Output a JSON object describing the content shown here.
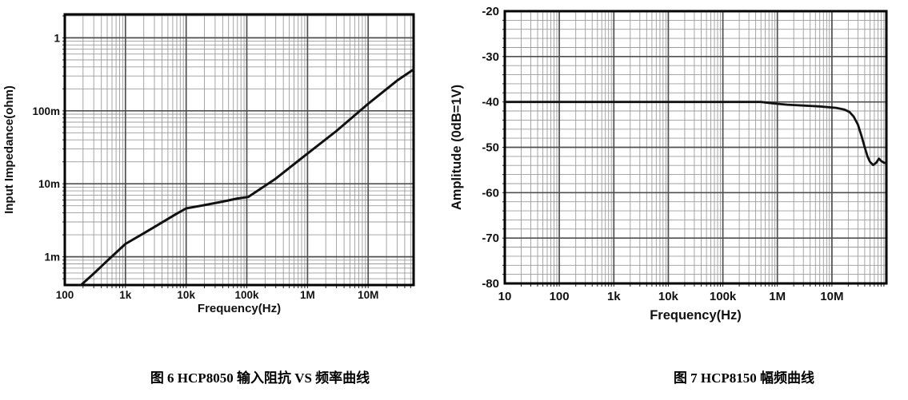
{
  "page": {
    "background": "#ffffff"
  },
  "captions": {
    "fig6": "图 6 HCP8050 输入阻抗 VS 频率曲线",
    "fig7": "图 7 HCP8150 幅频曲线"
  },
  "colors": {
    "curve": "#111111",
    "grid_minor": "#9c9c9c",
    "grid_major": "#4f4f4f",
    "border": "#000000"
  },
  "chart_data": [
    {
      "id": "impedance",
      "type": "line",
      "xlabel": "Frequency(Hz)",
      "ylabel": "Input Impedance(ohm)",
      "xscale": "log",
      "yscale": "log",
      "xlim": [
        100,
        56000000
      ],
      "ylim": [
        0.00041,
        2.1
      ],
      "grid": {
        "x_minor": "log",
        "y_minor": "log"
      },
      "xticks": [
        {
          "v": 100,
          "label": "100"
        },
        {
          "v": 1000,
          "label": "1k"
        },
        {
          "v": 10000,
          "label": "10k"
        },
        {
          "v": 100000,
          "label": "100k"
        },
        {
          "v": 1000000,
          "label": "1M"
        },
        {
          "v": 10000000,
          "label": "10M"
        }
      ],
      "yticks": [
        {
          "v": 1,
          "label": "1"
        },
        {
          "v": 0.1,
          "label": "100m"
        },
        {
          "v": 0.01,
          "label": "10m"
        },
        {
          "v": 0.001,
          "label": "1m"
        }
      ],
      "series": [
        {
          "name": "input_impedance_ohm",
          "points": [
            [
              185,
              0.00041
            ],
            [
              300,
              0.00059
            ],
            [
              500,
              0.00088
            ],
            [
              700,
              0.00114
            ],
            [
              1000,
              0.0015
            ],
            [
              2000,
              0.0021
            ],
            [
              3000,
              0.00256
            ],
            [
              5000,
              0.0033
            ],
            [
              7000,
              0.0039
            ],
            [
              10000,
              0.0046
            ],
            [
              20000,
              0.0051
            ],
            [
              40000,
              0.0057
            ],
            [
              70000,
              0.0063
            ],
            [
              105000,
              0.0066
            ],
            [
              300000,
              0.0118
            ],
            [
              1000000,
              0.026
            ],
            [
              3000000,
              0.053
            ],
            [
              10000000,
              0.125
            ],
            [
              30000000,
              0.26
            ],
            [
              56000000,
              0.37
            ]
          ]
        }
      ]
    },
    {
      "id": "amplitude",
      "type": "line",
      "xlabel": "Frequency(Hz)",
      "ylabel": "Amplitude (0dB=1V)",
      "xscale": "log",
      "yscale": "linear",
      "xlim": [
        10,
        100000000
      ],
      "ylim": [
        -80,
        -20
      ],
      "grid": {
        "x_minor": "log",
        "y_minor_step": 2,
        "y_major_step": 10
      },
      "xticks": [
        {
          "v": 10,
          "label": "10"
        },
        {
          "v": 100,
          "label": "100"
        },
        {
          "v": 1000,
          "label": "1k"
        },
        {
          "v": 10000,
          "label": "10k"
        },
        {
          "v": 100000,
          "label": "100k"
        },
        {
          "v": 1000000,
          "label": "1M"
        },
        {
          "v": 10000000,
          "label": "10M"
        }
      ],
      "yticks": [
        {
          "v": -20,
          "label": "-20"
        },
        {
          "v": -30,
          "label": "-30"
        },
        {
          "v": -40,
          "label": "-40"
        },
        {
          "v": -50,
          "label": "-50"
        },
        {
          "v": -60,
          "label": "-60"
        },
        {
          "v": -70,
          "label": "-70"
        },
        {
          "v": -80,
          "label": "-80"
        }
      ],
      "series": [
        {
          "name": "amplitude_db",
          "points": [
            [
              10,
              -40
            ],
            [
              100,
              -40
            ],
            [
              1000,
              -40
            ],
            [
              10000,
              -40
            ],
            [
              100000,
              -40
            ],
            [
              500000,
              -40
            ],
            [
              800000,
              -40.3
            ],
            [
              1500000,
              -40.6
            ],
            [
              3000000,
              -40.8
            ],
            [
              6000000,
              -41.0
            ],
            [
              12000000,
              -41.3
            ],
            [
              17000000,
              -41.7
            ],
            [
              21000000,
              -42.2
            ],
            [
              25000000,
              -43.2
            ],
            [
              30000000,
              -45.0
            ],
            [
              35000000,
              -47.5
            ],
            [
              40000000,
              -50.0
            ],
            [
              45000000,
              -52.0
            ],
            [
              50000000,
              -53.2
            ],
            [
              57000000,
              -53.9
            ],
            [
              65000000,
              -53.4
            ],
            [
              73000000,
              -52.5
            ],
            [
              80000000,
              -53.0
            ],
            [
              90000000,
              -53.4
            ],
            [
              100000000,
              -53.5
            ]
          ]
        }
      ]
    }
  ]
}
